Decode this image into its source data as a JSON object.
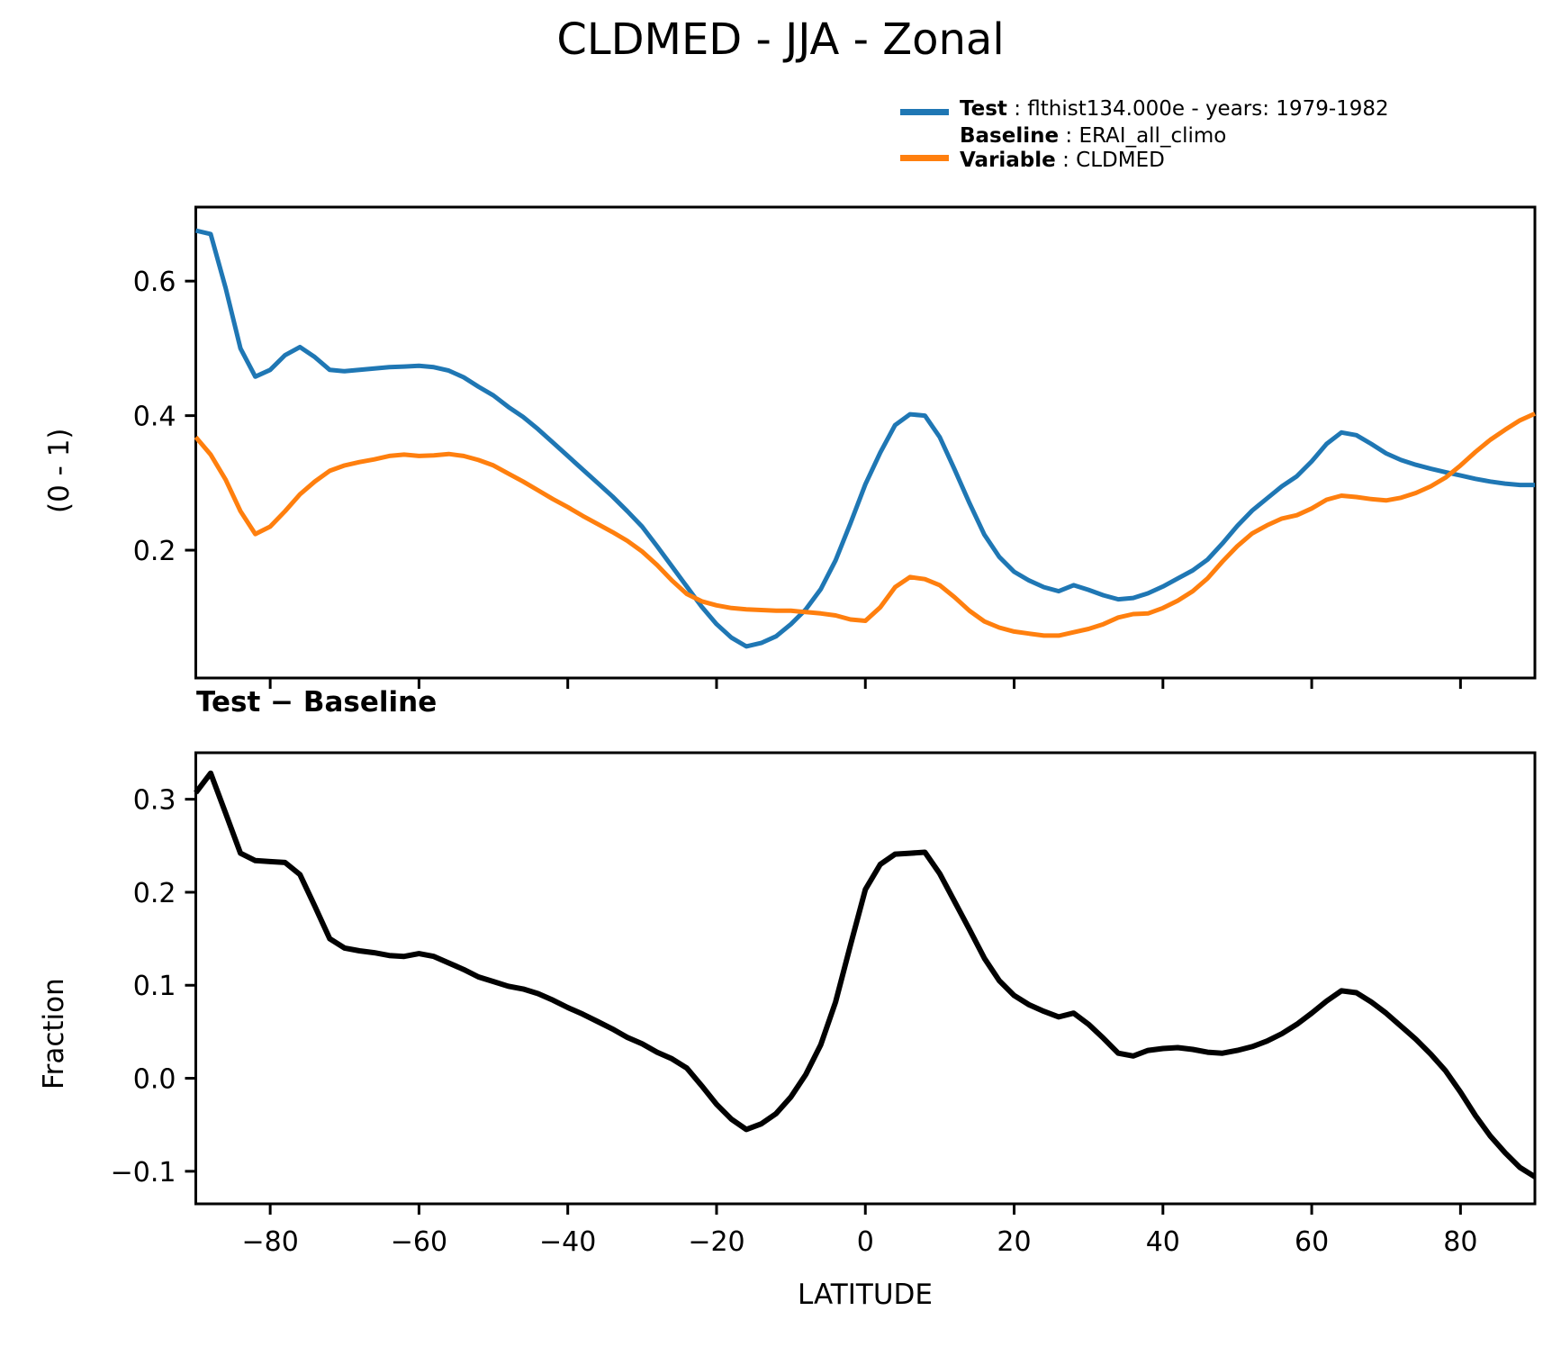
{
  "figure_title": "CLDMED - JJA - Zonal",
  "legend": {
    "test_name": "Test",
    "test_rest": " : flthist134.000e - years: 1979-1982",
    "baseline_name": "Baseline",
    "baseline_rest": " : ERAI_all_climo",
    "variable_name": "Variable",
    "variable_rest": " : CLDMED",
    "test_color": "#1f77b4",
    "baseline_color": "#ff7f0e"
  },
  "chart_data": [
    {
      "id": "zonal-means",
      "type": "line",
      "title": "",
      "xlabel": "",
      "ylabel": "(0 - 1)",
      "xlim": [
        -90,
        90
      ],
      "ylim": [
        0.01,
        0.71
      ],
      "grid": false,
      "legend_position": "above-right",
      "xticks": [
        -80,
        -60,
        -40,
        -20,
        0,
        20,
        40,
        60,
        80
      ],
      "xtick_labels": [],
      "yticks": [
        0.6,
        0.4,
        0.2
      ],
      "ytick_labels": [
        "0.6",
        "0.4",
        "0.2"
      ],
      "x": [
        -90,
        -88,
        -86,
        -84,
        -82,
        -80,
        -78,
        -76,
        -74,
        -72,
        -70,
        -68,
        -66,
        -64,
        -62,
        -60,
        -58,
        -56,
        -54,
        -52,
        -50,
        -48,
        -46,
        -44,
        -42,
        -40,
        -38,
        -36,
        -34,
        -32,
        -30,
        -28,
        -26,
        -24,
        -22,
        -20,
        -18,
        -16,
        -14,
        -12,
        -10,
        -8,
        -6,
        -4,
        -2,
        0,
        2,
        4,
        6,
        8,
        10,
        12,
        14,
        16,
        18,
        20,
        22,
        24,
        26,
        28,
        30,
        32,
        34,
        36,
        38,
        40,
        42,
        44,
        46,
        48,
        50,
        52,
        54,
        56,
        58,
        60,
        62,
        64,
        66,
        68,
        70,
        72,
        74,
        76,
        78,
        80,
        82,
        84,
        86,
        88,
        90
      ],
      "series": [
        {
          "name": "Test",
          "legend_label": "Test : flthist134.000e - years: 1979-1982",
          "color": "#1f77b4",
          "linewidth": 5,
          "values": [
            0.675,
            0.67,
            0.59,
            0.5,
            0.458,
            0.468,
            0.49,
            0.502,
            0.487,
            0.468,
            0.466,
            0.468,
            0.47,
            0.472,
            0.473,
            0.474,
            0.472,
            0.467,
            0.457,
            0.443,
            0.43,
            0.413,
            0.398,
            0.38,
            0.36,
            0.34,
            0.32,
            0.3,
            0.28,
            0.258,
            0.235,
            0.206,
            0.176,
            0.146,
            0.116,
            0.09,
            0.07,
            0.057,
            0.062,
            0.072,
            0.09,
            0.112,
            0.142,
            0.185,
            0.24,
            0.298,
            0.345,
            0.386,
            0.402,
            0.4,
            0.368,
            0.32,
            0.27,
            0.223,
            0.19,
            0.168,
            0.155,
            0.145,
            0.139,
            0.148,
            0.141,
            0.133,
            0.127,
            0.129,
            0.136,
            0.146,
            0.158,
            0.17,
            0.186,
            0.21,
            0.236,
            0.259,
            0.277,
            0.295,
            0.31,
            0.332,
            0.358,
            0.375,
            0.371,
            0.358,
            0.344,
            0.334,
            0.327,
            0.321,
            0.316,
            0.311,
            0.306,
            0.302,
            0.299,
            0.297,
            0.297
          ]
        },
        {
          "name": "Baseline",
          "legend_label": "Baseline : ERAI_all_climo  Variable : CLDMED",
          "color": "#ff7f0e",
          "linewidth": 5,
          "values": [
            0.368,
            0.342,
            0.305,
            0.258,
            0.224,
            0.235,
            0.258,
            0.283,
            0.302,
            0.318,
            0.326,
            0.331,
            0.335,
            0.34,
            0.342,
            0.34,
            0.341,
            0.343,
            0.34,
            0.334,
            0.326,
            0.314,
            0.302,
            0.289,
            0.276,
            0.264,
            0.251,
            0.239,
            0.227,
            0.214,
            0.198,
            0.178,
            0.155,
            0.135,
            0.124,
            0.118,
            0.114,
            0.112,
            0.111,
            0.11,
            0.11,
            0.108,
            0.106,
            0.103,
            0.097,
            0.095,
            0.115,
            0.145,
            0.16,
            0.157,
            0.148,
            0.13,
            0.11,
            0.094,
            0.085,
            0.079,
            0.076,
            0.073,
            0.073,
            0.078,
            0.083,
            0.09,
            0.1,
            0.105,
            0.106,
            0.114,
            0.125,
            0.139,
            0.158,
            0.183,
            0.206,
            0.225,
            0.237,
            0.247,
            0.252,
            0.262,
            0.275,
            0.281,
            0.279,
            0.276,
            0.274,
            0.278,
            0.285,
            0.295,
            0.308,
            0.326,
            0.346,
            0.364,
            0.379,
            0.393,
            0.403
          ]
        }
      ]
    },
    {
      "id": "difference",
      "type": "line",
      "title": "Test − Baseline",
      "xlabel": "LATITUDE",
      "ylabel": "Fraction",
      "xlim": [
        -90,
        90
      ],
      "ylim": [
        -0.135,
        0.35
      ],
      "grid": false,
      "xticks": [
        -80,
        -60,
        -40,
        -20,
        0,
        20,
        40,
        60,
        80
      ],
      "xtick_labels": [
        "−80",
        "−60",
        "−40",
        "−20",
        "0",
        "20",
        "40",
        "60",
        "80"
      ],
      "yticks": [
        0.3,
        0.2,
        0.1,
        0.0,
        -0.1
      ],
      "ytick_labels": [
        "0.3",
        "0.2",
        "0.1",
        "0.0",
        "−0.1"
      ],
      "x": [
        -90,
        -88,
        -86,
        -84,
        -82,
        -80,
        -78,
        -76,
        -74,
        -72,
        -70,
        -68,
        -66,
        -64,
        -62,
        -60,
        -58,
        -56,
        -54,
        -52,
        -50,
        -48,
        -46,
        -44,
        -42,
        -40,
        -38,
        -36,
        -34,
        -32,
        -30,
        -28,
        -26,
        -24,
        -22,
        -20,
        -18,
        -16,
        -14,
        -12,
        -10,
        -8,
        -6,
        -4,
        -2,
        0,
        2,
        4,
        6,
        8,
        10,
        12,
        14,
        16,
        18,
        20,
        22,
        24,
        26,
        28,
        30,
        32,
        34,
        36,
        38,
        40,
        42,
        44,
        46,
        48,
        50,
        52,
        54,
        56,
        58,
        60,
        62,
        64,
        66,
        68,
        70,
        72,
        74,
        76,
        78,
        80,
        82,
        84,
        86,
        88,
        90
      ],
      "series": [
        {
          "name": "Test − Baseline",
          "color": "#000000",
          "linewidth": 6,
          "values": [
            0.307,
            0.328,
            0.285,
            0.242,
            0.234,
            0.233,
            0.232,
            0.219,
            0.185,
            0.15,
            0.14,
            0.137,
            0.135,
            0.132,
            0.131,
            0.134,
            0.131,
            0.124,
            0.117,
            0.109,
            0.104,
            0.099,
            0.096,
            0.091,
            0.084,
            0.076,
            0.069,
            0.061,
            0.053,
            0.044,
            0.037,
            0.028,
            0.021,
            0.011,
            -0.008,
            -0.028,
            -0.044,
            -0.055,
            -0.049,
            -0.038,
            -0.02,
            0.004,
            0.036,
            0.082,
            0.143,
            0.203,
            0.23,
            0.241,
            0.242,
            0.243,
            0.22,
            0.19,
            0.16,
            0.129,
            0.105,
            0.089,
            0.079,
            0.072,
            0.066,
            0.07,
            0.058,
            0.043,
            0.027,
            0.024,
            0.03,
            0.032,
            0.033,
            0.031,
            0.028,
            0.027,
            0.03,
            0.034,
            0.04,
            0.048,
            0.058,
            0.07,
            0.083,
            0.094,
            0.092,
            0.082,
            0.07,
            0.056,
            0.042,
            0.026,
            0.008,
            -0.015,
            -0.04,
            -0.062,
            -0.08,
            -0.096,
            -0.106
          ]
        }
      ]
    }
  ]
}
